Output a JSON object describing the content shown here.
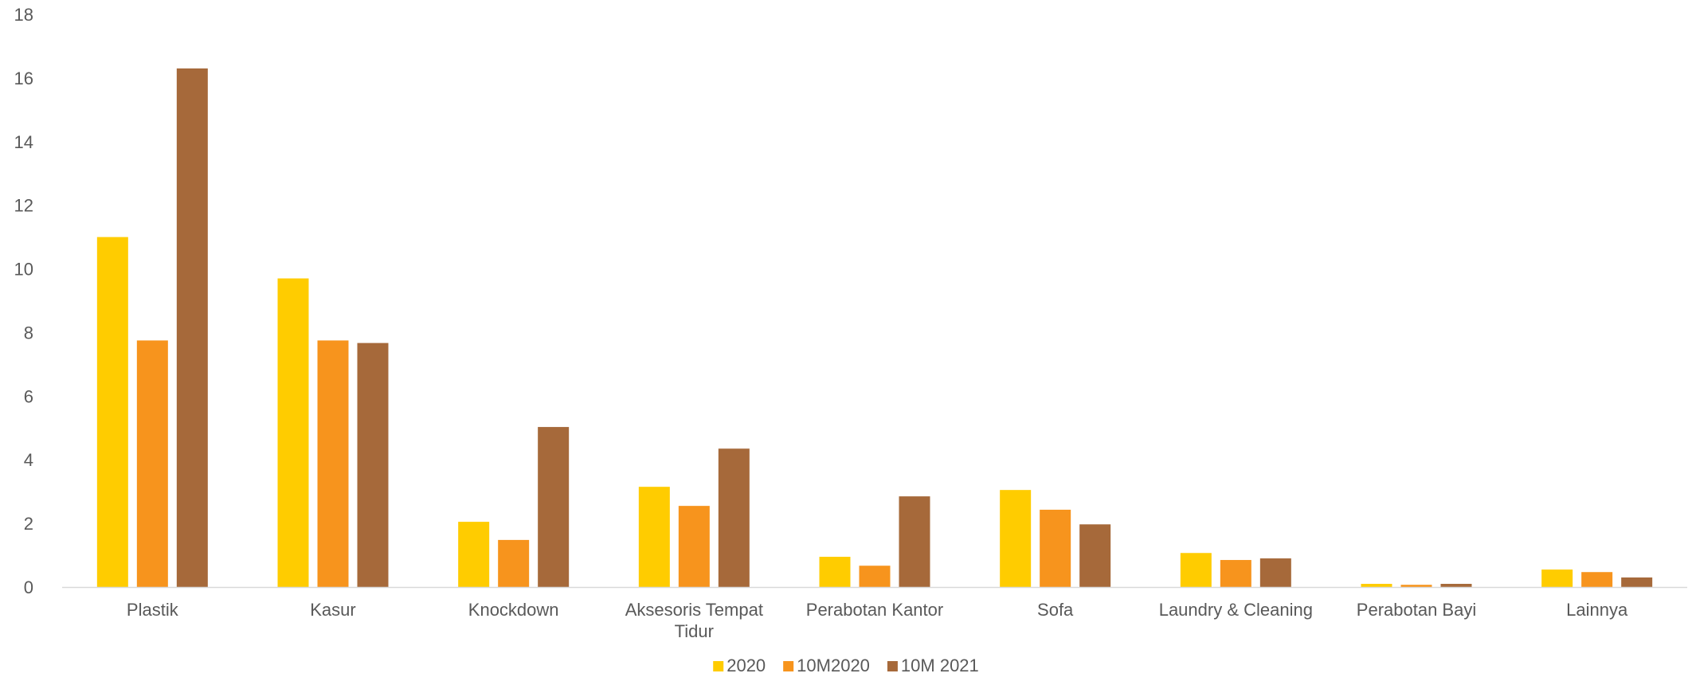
{
  "chart_data": {
    "type": "bar",
    "title": "",
    "xlabel": "",
    "ylabel": "",
    "ylim": [
      0,
      18
    ],
    "yticks": [
      0,
      2,
      4,
      6,
      8,
      10,
      12,
      14,
      16,
      18
    ],
    "grid": false,
    "legend_position": "bottom",
    "categories": [
      [
        "Plastik"
      ],
      [
        "Kasur"
      ],
      [
        "Knockdown"
      ],
      [
        "Aksesoris Tempat",
        "Tidur"
      ],
      [
        "Perabotan Kantor"
      ],
      [
        "Sofa"
      ],
      [
        "Laundry & Cleaning"
      ],
      [
        "Perabotan Bayi"
      ],
      [
        "Lainnya"
      ]
    ],
    "series": [
      {
        "name": "2020",
        "color": "#FFCC00",
        "values": [
          11.0,
          9.7,
          2.05,
          3.15,
          0.95,
          3.05,
          1.07,
          0.1,
          0.55
        ]
      },
      {
        "name": "10M2020",
        "color": "#F7941D",
        "values": [
          7.75,
          7.75,
          1.48,
          2.55,
          0.67,
          2.43,
          0.85,
          0.07,
          0.47
        ]
      },
      {
        "name": "10M 2021",
        "color": "#A6693A",
        "values": [
          16.3,
          7.67,
          5.03,
          4.35,
          2.85,
          1.97,
          0.9,
          0.1,
          0.3
        ]
      }
    ]
  }
}
